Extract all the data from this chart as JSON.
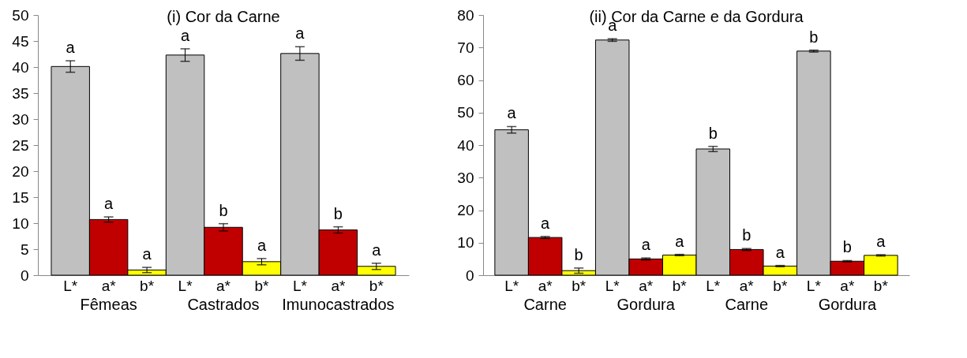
{
  "chart_data": [
    {
      "type": "bar",
      "title": "(i) Cor da Carne",
      "categories": [
        "L*",
        "a*",
        "b*",
        "L*",
        "a*",
        "b*",
        "L*",
        "a*",
        "b*"
      ],
      "values": [
        40.1,
        10.7,
        1.0,
        42.3,
        9.2,
        2.6,
        42.6,
        8.7,
        1.7
      ],
      "errors": [
        1.1,
        0.5,
        0.5,
        1.2,
        0.7,
        0.6,
        1.3,
        0.6,
        0.6
      ],
      "colors": [
        "#c0c0c0",
        "#c00000",
        "#ffff00",
        "#c0c0c0",
        "#c00000",
        "#ffff00",
        "#c0c0c0",
        "#c00000",
        "#ffff00"
      ],
      "value_labels": [
        "a",
        "a",
        "a",
        "a",
        "b",
        "a",
        "a",
        "b",
        "a"
      ],
      "annotations": [
        "Fêmeas",
        "Castrados",
        "Imunocastrados"
      ],
      "ylim": [
        0,
        50
      ],
      "yticks": [
        0,
        5,
        10,
        15,
        20,
        25,
        30,
        35,
        40,
        45,
        50
      ],
      "grid": false,
      "legend": false
    },
    {
      "type": "bar",
      "title": "(ii) Cor da Carne e da Gordura",
      "categories": [
        "L*",
        "a*",
        "b*",
        "L*",
        "a*",
        "b*",
        "L*",
        "a*",
        "b*",
        "L*",
        "a*",
        "b*"
      ],
      "values": [
        44.7,
        11.6,
        1.4,
        72.3,
        5.0,
        6.2,
        38.8,
        7.9,
        2.8,
        68.9,
        4.3,
        6.1
      ],
      "errors": [
        1.0,
        0.3,
        0.8,
        0.4,
        0.3,
        0.2,
        0.8,
        0.3,
        0.2,
        0.3,
        0.2,
        0.2
      ],
      "colors": [
        "#c0c0c0",
        "#c00000",
        "#ffff00",
        "#c0c0c0",
        "#c00000",
        "#ffff00",
        "#c0c0c0",
        "#c00000",
        "#ffff00",
        "#c0c0c0",
        "#c00000",
        "#ffff00"
      ],
      "value_labels": [
        "a",
        "a",
        "b",
        "a",
        "a",
        "a",
        "b",
        "b",
        "a",
        "b",
        "b",
        "a"
      ],
      "annotations": [
        "Carne",
        "Gordura",
        "Carne",
        "Gordura"
      ],
      "ylim": [
        0,
        80
      ],
      "yticks": [
        0,
        10,
        20,
        30,
        40,
        50,
        60,
        70,
        80
      ],
      "grid": false,
      "legend": false
    }
  ]
}
